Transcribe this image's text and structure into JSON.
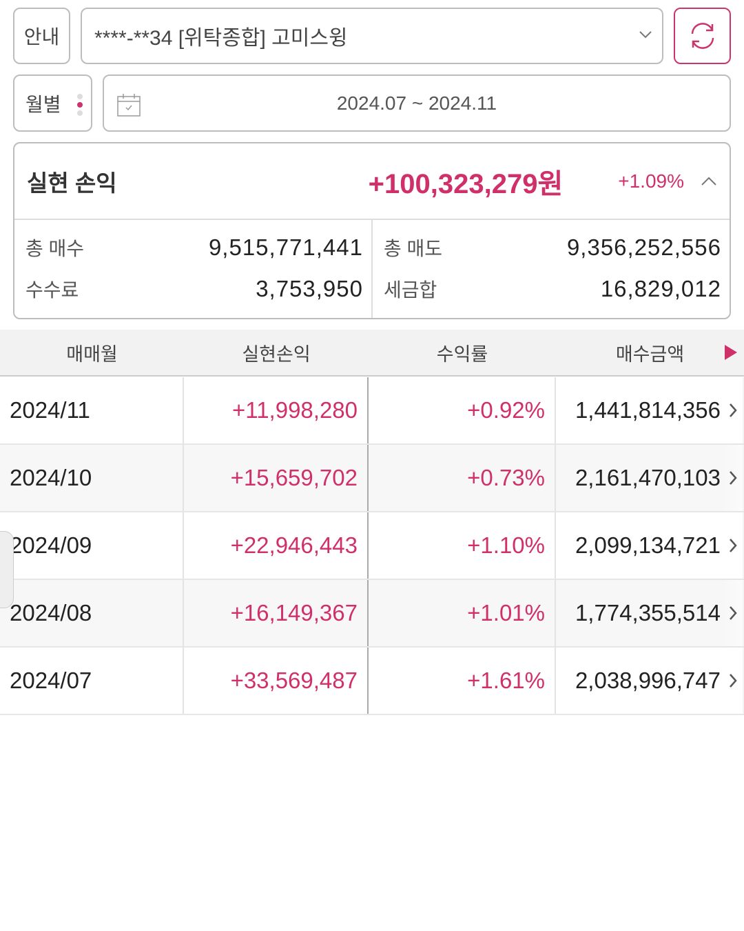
{
  "header": {
    "info_label": "안내",
    "account": "****-**34 [위탁종합] 고미스윙",
    "period_label": "월별",
    "date_range": "2024.07 ~ 2024.11"
  },
  "summary": {
    "title": "실현 손익",
    "value": "+100,323,279원",
    "rate": "+1.09%",
    "total_buy_label": "총 매수",
    "total_buy": "9,515,771,441",
    "total_sell_label": "총 매도",
    "total_sell": "9,356,252,556",
    "fee_label": "수수료",
    "fee": "3,753,950",
    "tax_label": "세금합",
    "tax": "16,829,012"
  },
  "table": {
    "headers": [
      "매매월",
      "실현손익",
      "수익률",
      "매수금액"
    ],
    "rows": [
      {
        "month": "2024/11",
        "profit": "+11,998,280",
        "rate": "+0.92%",
        "buy": "1,441,814,356"
      },
      {
        "month": "2024/10",
        "profit": "+15,659,702",
        "rate": "+0.73%",
        "buy": "2,161,470,103"
      },
      {
        "month": "2024/09",
        "profit": "+22,946,443",
        "rate": "+1.10%",
        "buy": "2,099,134,721"
      },
      {
        "month": "2024/08",
        "profit": "+16,149,367",
        "rate": "+1.01%",
        "buy": "1,774,355,514"
      },
      {
        "month": "2024/07",
        "profit": "+33,569,487",
        "rate": "+1.61%",
        "buy": "2,038,996,747"
      }
    ]
  },
  "colors": {
    "accent": "#d0306a"
  }
}
